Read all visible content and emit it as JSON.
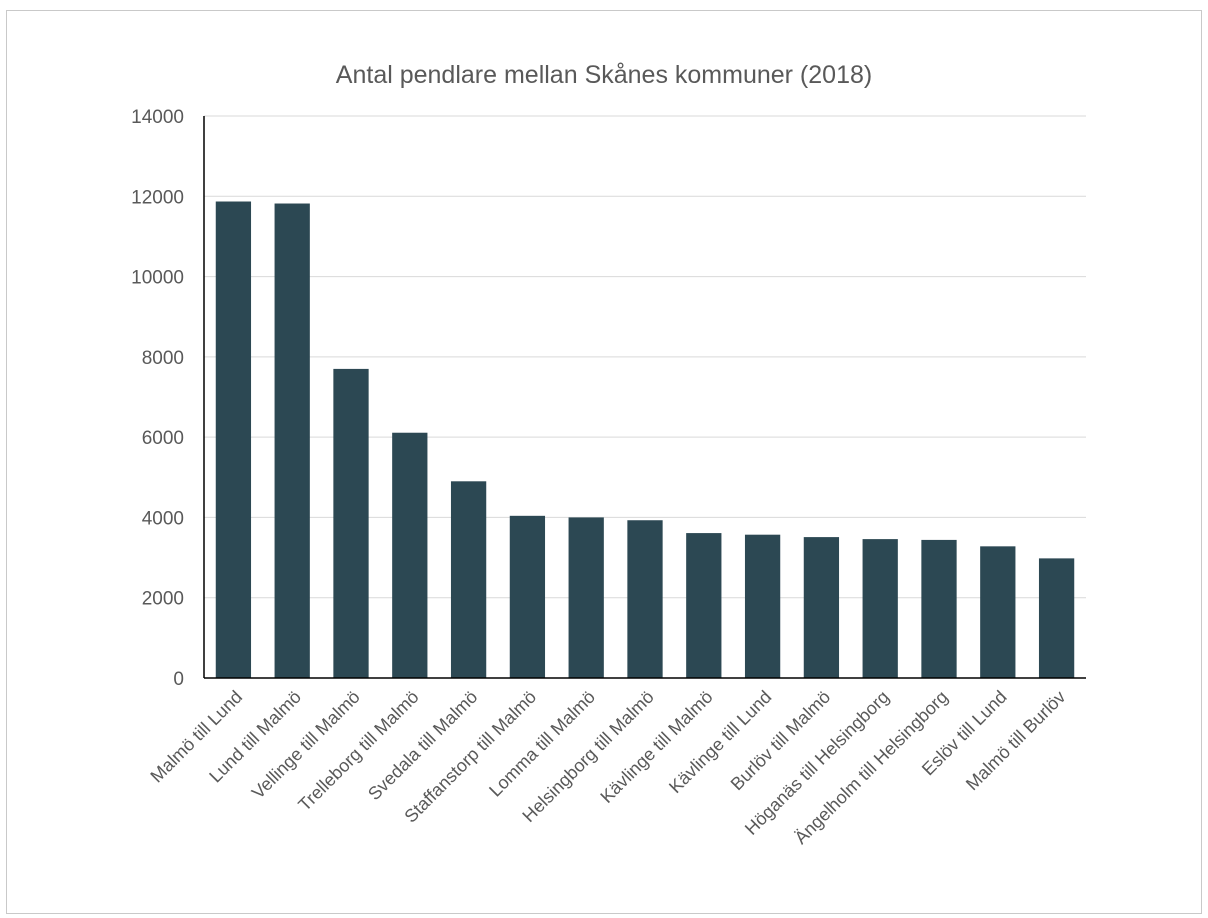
{
  "chart_data": {
    "type": "bar",
    "title": "Antal pendlare mellan Skånes kommuner (2018)",
    "xlabel": "",
    "ylabel": "",
    "ylim": [
      0,
      14000
    ],
    "yticks": [
      0,
      2000,
      4000,
      6000,
      8000,
      10000,
      12000,
      14000
    ],
    "grid": true,
    "legend": "none",
    "categories": [
      "Malmö till Lund",
      "Lund till Malmö",
      "Vellinge till Malmö",
      "Trelleborg till Malmö",
      "Svedala till Malmö",
      "Staffanstorp till Malmö",
      "Lomma till Malmö",
      "Helsingborg till Malmö",
      "Kävlinge till Malmö",
      "Kävlinge till Lund",
      "Burlöv till Malmö",
      "Höganäs till Helsingborg",
      "Ängelholm till Helsingborg",
      "Eslöv till Lund",
      "Malmö till Burlöv"
    ],
    "values": [
      11870,
      11820,
      7700,
      6110,
      4900,
      4040,
      4000,
      3930,
      3610,
      3570,
      3510,
      3460,
      3440,
      3280,
      2980
    ],
    "colors": {
      "bar": "#2c4853",
      "grid": "#d9d9d9",
      "axis": "#000000",
      "text": "#595959"
    }
  }
}
